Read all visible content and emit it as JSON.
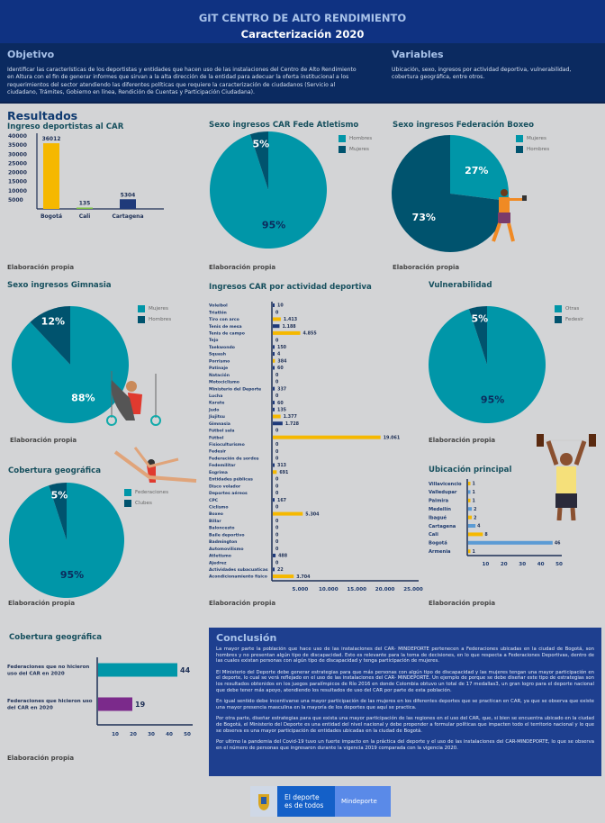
{
  "header": {
    "title": "GIT CENTRO DE ALTO RENDIMIENTO",
    "subtitle": "Caracterización 2020"
  },
  "objetivo": {
    "title": "Objetivo",
    "text": "Identificar las características de los deportistas y entidades que hacen uso de las instalaciones del Centro de Alto Rendimiento en Altura con el fin de generar informes que sirvan a la alta dirección de la entidad para adecuar la oferta institucional a los requerimientos del sector atendiendo las diferentes políticas que requiere la caracterización de ciudadanos (Servicio al ciudadano, Trámites, Gobierno en línea, Rendición de Cuentas y Participación Ciudadana)."
  },
  "variables": {
    "title": "Variables",
    "text": "Ubicación, sexo, ingresos por actividad deportiva, vulnerabilidad, cobertura geográfica, entre otros."
  },
  "resultados_title": "Resultados",
  "source_label": "Elaboración propia",
  "colors": {
    "teal": "#0096a8",
    "dark_teal": "#00536e",
    "yellow": "#f5b800",
    "navy": "#1f3a7a",
    "green": "#7bc142",
    "light_blue": "#5b9bd5",
    "purple": "#7b2a8b"
  },
  "chart_data": [
    {
      "id": "ingreso",
      "type": "bar",
      "title": "Ingreso deportistas al CAR",
      "categories": [
        "Bogotá",
        "Cali",
        "Cartagena"
      ],
      "values": [
        36012,
        135,
        5304
      ],
      "value_labels": [
        "36012",
        "135",
        "5304"
      ],
      "colors": [
        "#f5b800",
        "#7bc142",
        "#1f3a7a"
      ],
      "yticks": [
        5000,
        10000,
        15000,
        20000,
        25000,
        30000,
        35000,
        40000
      ],
      "ylim": [
        0,
        40000
      ]
    },
    {
      "id": "atletismo",
      "type": "pie",
      "title": "Sexo ingresos CAR Fede Atletismo",
      "slices": [
        {
          "name": "Hombres",
          "value": 95,
          "label": "95%",
          "color": "#0096a8"
        },
        {
          "name": "Mujeres",
          "value": 5,
          "label": "5%",
          "color": "#00536e"
        }
      ]
    },
    {
      "id": "boxeo",
      "type": "pie",
      "title": "Sexo ingresos Federación Boxeo",
      "slices": [
        {
          "name": "Mujeres",
          "value": 27,
          "label": "27%",
          "color": "#0096a8"
        },
        {
          "name": "Hombres",
          "value": 73,
          "label": "73%",
          "color": "#00536e"
        }
      ]
    },
    {
      "id": "gimnasia",
      "type": "pie",
      "title": "Sexo ingresos Gimnasia",
      "slices": [
        {
          "name": "Mujeres",
          "value": 88,
          "label": "88%",
          "color": "#0096a8"
        },
        {
          "name": "Hombres",
          "value": 12,
          "label": "12%",
          "color": "#00536e"
        }
      ]
    },
    {
      "id": "cobertura_pie",
      "type": "pie",
      "title": "Cobertura geográfica",
      "slices": [
        {
          "name": "Federaciones",
          "value": 95,
          "label": "95%",
          "color": "#0096a8"
        },
        {
          "name": "Clubes",
          "value": 5,
          "label": "5%",
          "color": "#00536e"
        }
      ]
    },
    {
      "id": "vulnerabilidad",
      "type": "pie",
      "title": "Vulnerabilidad",
      "slices": [
        {
          "name": "Otras",
          "value": 95,
          "label": "95%",
          "color": "#0096a8"
        },
        {
          "name": "Fedesir",
          "value": 5,
          "label": "5%",
          "color": "#00536e"
        }
      ]
    },
    {
      "id": "actividad",
      "type": "bar",
      "orientation": "horizontal",
      "title": "Ingresos CAR por actividad deportiva",
      "xticks": [
        "5.000",
        "10.000",
        "15.000",
        "20.000",
        "25.000"
      ],
      "xlim": [
        0,
        25000
      ],
      "items": [
        {
          "label": "Voleibol",
          "value": 10,
          "text": "10",
          "color": "#1f3a7a"
        },
        {
          "label": "Triatlón",
          "value": 0,
          "text": "0",
          "color": "#1f3a7a"
        },
        {
          "label": "Tiro con arco",
          "value": 1413,
          "text": "1.413",
          "color": "#f5b800"
        },
        {
          "label": "Tenis de mesa",
          "value": 1188,
          "text": "1.188",
          "color": "#1f3a7a"
        },
        {
          "label": "Tenis de campo",
          "value": 4855,
          "text": "4.855",
          "color": "#f5b800"
        },
        {
          "label": "Tejo",
          "value": 0,
          "text": "0",
          "color": "#1f3a7a"
        },
        {
          "label": "Taekwondo",
          "value": 150,
          "text": "150",
          "color": "#1f3a7a"
        },
        {
          "label": "Squash",
          "value": 4,
          "text": "4",
          "color": "#1f3a7a"
        },
        {
          "label": "Porrismo",
          "value": 384,
          "text": "384",
          "color": "#f5b800"
        },
        {
          "label": "Patinaje",
          "value": 60,
          "text": "60",
          "color": "#1f3a7a"
        },
        {
          "label": "Natación",
          "value": 0,
          "text": "0",
          "color": "#1f3a7a"
        },
        {
          "label": "Motociclismo",
          "value": 0,
          "text": "0",
          "color": "#1f3a7a"
        },
        {
          "label": "Ministerio del Deporte",
          "value": 337,
          "text": "337",
          "color": "#1f3a7a"
        },
        {
          "label": "Lucha",
          "value": 0,
          "text": "0",
          "color": "#1f3a7a"
        },
        {
          "label": "Karate",
          "value": 60,
          "text": "60",
          "color": "#1f3a7a"
        },
        {
          "label": "Judo",
          "value": 135,
          "text": "135",
          "color": "#1f3a7a"
        },
        {
          "label": "Jiujitsu",
          "value": 1377,
          "text": "1.377",
          "color": "#f5b800"
        },
        {
          "label": "Gimnasia",
          "value": 1728,
          "text": "1.728",
          "color": "#1f3a7a"
        },
        {
          "label": "Fútbol sala",
          "value": 0,
          "text": "0",
          "color": "#1f3a7a"
        },
        {
          "label": "Fútbol",
          "value": 19061,
          "text": "19.061",
          "color": "#f5b800"
        },
        {
          "label": "Fisioculturismo",
          "value": 0,
          "text": "0",
          "color": "#1f3a7a"
        },
        {
          "label": "Fedesir",
          "value": 0,
          "text": "0",
          "color": "#1f3a7a"
        },
        {
          "label": "Federación de sordos",
          "value": 0,
          "text": "0",
          "color": "#1f3a7a"
        },
        {
          "label": "Fedemilitar",
          "value": 313,
          "text": "313",
          "color": "#1f3a7a"
        },
        {
          "label": "Esgrima",
          "value": 691,
          "text": "691",
          "color": "#f5b800"
        },
        {
          "label": "Entidades públicas",
          "value": 0,
          "text": "0",
          "color": "#1f3a7a"
        },
        {
          "label": "Disco volador",
          "value": 0,
          "text": "0",
          "color": "#1f3a7a"
        },
        {
          "label": "Deportes aéreos",
          "value": 0,
          "text": "0",
          "color": "#1f3a7a"
        },
        {
          "label": "CPC",
          "value": 167,
          "text": "167",
          "color": "#1f3a7a"
        },
        {
          "label": "Ciclismo",
          "value": 0,
          "text": "0",
          "color": "#1f3a7a"
        },
        {
          "label": "Boxeo",
          "value": 5304,
          "text": "5.304",
          "color": "#f5b800"
        },
        {
          "label": "Billar",
          "value": 0,
          "text": "0",
          "color": "#1f3a7a"
        },
        {
          "label": "Baloncesto",
          "value": 0,
          "text": "0",
          "color": "#1f3a7a"
        },
        {
          "label": "Baile deportivo",
          "value": 0,
          "text": "0",
          "color": "#1f3a7a"
        },
        {
          "label": "Badmington",
          "value": 0,
          "text": "0",
          "color": "#1f3a7a"
        },
        {
          "label": "Automovilismo",
          "value": 0,
          "text": "0",
          "color": "#1f3a7a"
        },
        {
          "label": "Atletismo",
          "value": 488,
          "text": "488",
          "color": "#1f3a7a"
        },
        {
          "label": "Ajedrez",
          "value": 0,
          "text": "0",
          "color": "#1f3a7a"
        },
        {
          "label": "Actividades subacuaticas",
          "value": 22,
          "text": "22",
          "color": "#1f3a7a"
        },
        {
          "label": "Acondicionamiento físico",
          "value": 3704,
          "text": "3.704",
          "color": "#f5b800"
        }
      ]
    },
    {
      "id": "ubicacion",
      "type": "bar",
      "orientation": "horizontal",
      "title": "Ubicación principal",
      "xticks": [
        "10",
        "20",
        "30",
        "40",
        "50"
      ],
      "xlim": [
        0,
        50
      ],
      "items": [
        {
          "label": "Villavicencio",
          "value": 1,
          "text": "1",
          "color": "#f5b800"
        },
        {
          "label": "Valledupar",
          "value": 1,
          "text": "1",
          "color": "#5b9bd5"
        },
        {
          "label": "Palmira",
          "value": 1,
          "text": "1",
          "color": "#f5b800"
        },
        {
          "label": "Medellín",
          "value": 2,
          "text": "2",
          "color": "#5b9bd5"
        },
        {
          "label": "Ibagué",
          "value": 2,
          "text": "2",
          "color": "#f5b800"
        },
        {
          "label": "Cartagena",
          "value": 4,
          "text": "4",
          "color": "#5b9bd5"
        },
        {
          "label": "Cali",
          "value": 8,
          "text": "8",
          "color": "#f5b800"
        },
        {
          "label": "Bogotá",
          "value": 46,
          "text": "46",
          "color": "#5b9bd5"
        },
        {
          "label": "Armenia",
          "value": 1,
          "text": "1",
          "color": "#f5b800"
        }
      ]
    },
    {
      "id": "cobertura_bar",
      "type": "bar",
      "orientation": "horizontal",
      "title": "Cobertura geográfica",
      "xticks": [
        "10",
        "20",
        "30",
        "40",
        "50"
      ],
      "xlim": [
        0,
        50
      ],
      "items": [
        {
          "label": "Federaciones que no hicieron uso del CAR en 2020",
          "value": 44,
          "text": "44",
          "color": "#0096a8"
        },
        {
          "label": "Federaciones que hicieron uso del CAR en 2020",
          "value": 19,
          "text": "19",
          "color": "#7b2a8b"
        }
      ]
    }
  ],
  "conclusion": {
    "title": "Conclusión",
    "paragraphs": [
      "La mayor parte la población que hace uso de las instalaciones del CAR- MINDEPORTE pertenecen a Federaciones ubicadas en la ciudad de Bogotá, son hombres y no presentan algún tipo de discapacidad. Esto es relevante para la toma de decisiones, en lo que respecta a Federaciones Deportivas, dentro de las cuales existan personas con algún tipo de discapacidad y tenga participación de mujeres.",
      "El Ministerio del Deporte debe generar estrategias para que más personas con algún tipo de discapacidad y las mujeres tengan una mayor participación en el deporte, lo cual se verá reflejado en el uso de las instalaciones del CAR- MINDEPORTE. Un ejemplo de porque se debe diseñar este tipo de estrategias son los resultados obtenidos en los juegos paralímpicos de Río 2016 en donde Colombia obtuvo un total de 17 medallas3, un gran logro para el deporte nacional que debe tener más apoyo, atendiendo los resultados de uso del CAR por parte de esta población.",
      "En igual sentido debe incentivarse una mayor participación de las mujeres en los diferentes deportes que se practican en CAR, ya que se observa que existe una mayor presencia masculina en la mayoría de los deportes que aquí se practica.",
      "Por otra parte, diseñar estrategias para que exista una mayor participación de las regiones en el uso del CAR, que, si bien se encuentra ubicado en la ciudad de Bogotá, el Ministerio del Deporte es una entidad del nivel nacional y debe propender a formular políticas que impacten todo el territorio nacional y lo que se observa es una mayor participación de entidades ubicadas en la ciudad de Bogotá.",
      "Por ultimo la pandemia del Covid-19 tuvo un fuerte impacto en la práctica del deporte y el uso de las instalaciones del CAR-MINDEPORTE, lo que se observa en el número de personas que ingresaron durante la vigencia 2019 comparada con la vigencia 2020."
    ]
  },
  "footer": {
    "slogan_line1": "El deporte",
    "slogan_line2": "es de todos",
    "brand": "Mindeporte"
  }
}
